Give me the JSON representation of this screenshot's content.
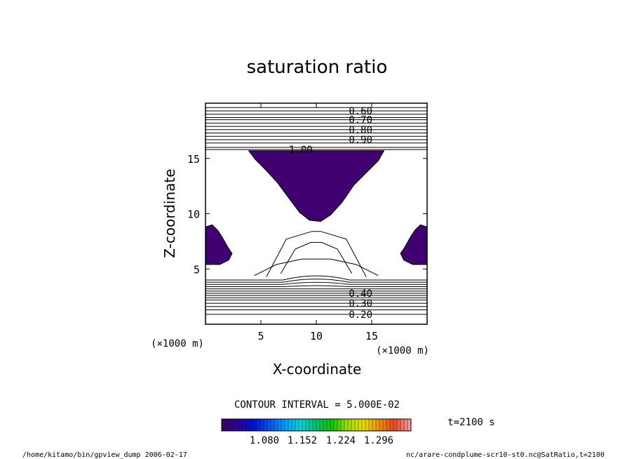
{
  "chart_data": {
    "type": "contour",
    "title": "saturation ratio",
    "xlabel": "X-coordinate",
    "ylabel": "Z-coordinate",
    "x_unit": "(×1000 m)",
    "z_unit": "(×1000 m)",
    "xlim": [
      0,
      20
    ],
    "ylim": [
      0,
      20
    ],
    "x_ticks": [
      5,
      10,
      15
    ],
    "y_ticks": [
      5,
      10,
      15
    ],
    "contour_interval_text": "CONTOUR INTERVAL = 5.000E-02",
    "upper_contour_labels": [
      {
        "label": "0.60",
        "z": 19.3
      },
      {
        "label": "0.70",
        "z": 18.5
      },
      {
        "label": "0.80",
        "z": 17.6
      },
      {
        "label": "0.90",
        "z": 16.7
      },
      {
        "label": "1.00",
        "z": 15.8
      }
    ],
    "lower_contour_labels": [
      {
        "label": "0.40",
        "z": 2.8
      },
      {
        "label": "0.30",
        "z": 1.9
      },
      {
        "label": "0.20",
        "z": 0.9
      }
    ],
    "upper_contour_z": [
      19.6,
      19.3,
      19.0,
      18.7,
      18.5,
      18.2,
      17.9,
      17.6,
      17.3,
      17.0,
      16.7,
      16.4,
      16.0,
      15.8
    ],
    "lower_contour_z": [
      4.0,
      3.8,
      3.6,
      3.4,
      3.2,
      3.0,
      2.8,
      2.6,
      2.4,
      2.2,
      1.9,
      1.6,
      1.3,
      0.9
    ],
    "supersaturated_region": {
      "outline": [
        [
          3.9,
          15.7
        ],
        [
          16.1,
          15.7
        ],
        [
          15.6,
          14.8
        ],
        [
          14.6,
          13.8
        ],
        [
          13.4,
          12.6
        ],
        [
          12.3,
          11.0
        ],
        [
          11.3,
          9.9
        ],
        [
          10.4,
          9.3
        ],
        [
          9.4,
          9.4
        ],
        [
          8.5,
          10.1
        ],
        [
          7.6,
          11.3
        ],
        [
          6.5,
          12.8
        ],
        [
          5.4,
          14.0
        ],
        [
          4.5,
          14.9
        ]
      ],
      "left_edge_outline": [
        [
          0,
          8.8
        ],
        [
          0.6,
          9.0
        ],
        [
          1.1,
          8.5
        ],
        [
          1.5,
          7.9
        ],
        [
          2.0,
          7.0
        ],
        [
          2.4,
          6.4
        ],
        [
          2.1,
          5.8
        ],
        [
          1.3,
          5.4
        ],
        [
          0,
          5.4
        ]
      ],
      "right_edge_outline": [
        [
          20,
          8.8
        ],
        [
          19.4,
          9.0
        ],
        [
          18.9,
          8.5
        ],
        [
          18.5,
          7.9
        ],
        [
          18.0,
          7.0
        ],
        [
          17.6,
          6.4
        ],
        [
          17.9,
          5.8
        ],
        [
          18.7,
          5.4
        ],
        [
          20,
          5.4
        ]
      ]
    },
    "colorbar": {
      "ticks": [
        "1.080",
        "1.152",
        "1.224",
        "1.296"
      ],
      "colors": [
        "#400070",
        "#2a00a0",
        "#0014d8",
        "#0058ee",
        "#00a0ff",
        "#00d6d6",
        "#00c070",
        "#10c800",
        "#9ce000",
        "#e8e000",
        "#f09800",
        "#e84820",
        "#f09898"
      ]
    },
    "time_label": "t=2100 s"
  },
  "footer": {
    "left": "/home/kitamo/bin/gpview_dump  2006-02-17",
    "right": "nc/arare-condplume-scr10-st0.nc@SatRatio,t=2100"
  }
}
